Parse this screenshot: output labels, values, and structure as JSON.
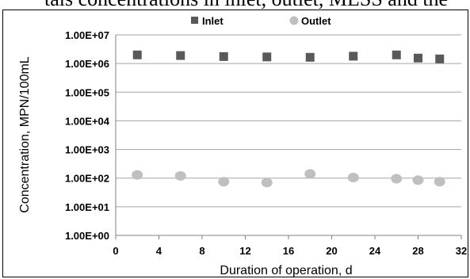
{
  "page": {
    "header_text": "tals concentrations in inlet, outlet, MLSS and the"
  },
  "chart_data": {
    "type": "scatter",
    "title": "",
    "xlabel": "Duration of operation, d",
    "ylabel": "Concentration, MPN/100mL",
    "xlim": [
      0,
      32
    ],
    "ylim": [
      1,
      10000000
    ],
    "yscale": "log",
    "xticks": [
      0,
      4,
      8,
      12,
      16,
      20,
      24,
      28,
      32
    ],
    "xtick_labels": [
      "0",
      "4",
      "8",
      "12",
      "16",
      "20",
      "24",
      "28",
      "32"
    ],
    "yticks": [
      1,
      10,
      100,
      1000,
      10000,
      100000,
      1000000,
      10000000
    ],
    "ytick_labels": [
      "1.00E+00",
      "1.00E+01",
      "1.00E+02",
      "1.00E+03",
      "1.00E+04",
      "1.00E+05",
      "1.00E+06",
      "1.00E+07"
    ],
    "grid": "horizontal",
    "legend_position": "top",
    "series": [
      {
        "name": "Inlet",
        "marker": "square",
        "color": "#595959",
        "x": [
          2,
          6,
          10,
          14,
          18,
          22,
          26,
          28,
          30
        ],
        "y": [
          2000000,
          1900000,
          1750000,
          1700000,
          1650000,
          1800000,
          2000000,
          1550000,
          1450000
        ]
      },
      {
        "name": "Outlet",
        "marker": "circle",
        "color": "#bfbfbf",
        "x": [
          2,
          6,
          10,
          14,
          18,
          22,
          26,
          28,
          30
        ],
        "y": [
          130,
          120,
          75,
          70,
          140,
          105,
          95,
          85,
          75
        ]
      }
    ]
  }
}
